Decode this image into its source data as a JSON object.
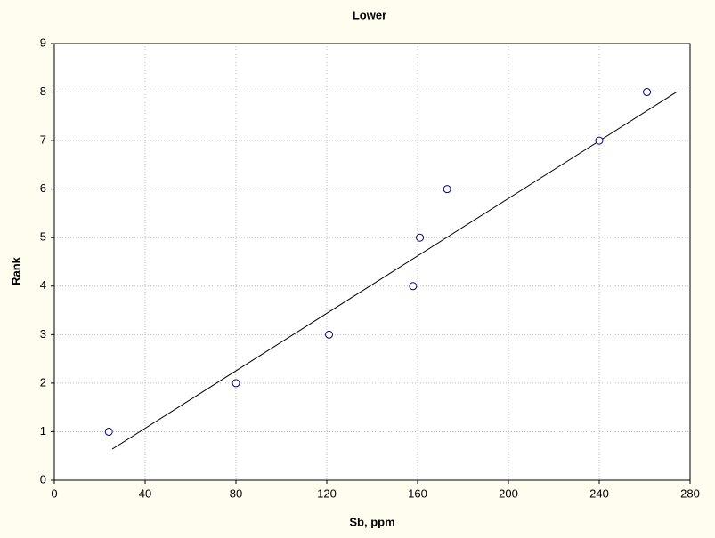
{
  "chart_data": {
    "type": "scatter",
    "title": "Lower",
    "x_label": "Sb, ppm",
    "y_label": "Rank",
    "x": [
      24,
      80,
      121,
      158,
      161,
      173,
      240,
      261
    ],
    "values": [
      1,
      2,
      3,
      4,
      5,
      6,
      7,
      8
    ],
    "color": "#000080",
    "fit_line": {
      "x": [
        25.5,
        274
      ],
      "y": [
        0.64,
        8
      ],
      "color": "#000000"
    },
    "xlim": [
      0,
      280
    ],
    "xticks": [
      0,
      40,
      80,
      120,
      160,
      200,
      240,
      280
    ],
    "ylim": [
      0,
      9
    ],
    "yticks": [
      0,
      1,
      2,
      3,
      4,
      5,
      6,
      7,
      8,
      9
    ],
    "grid": true
  }
}
